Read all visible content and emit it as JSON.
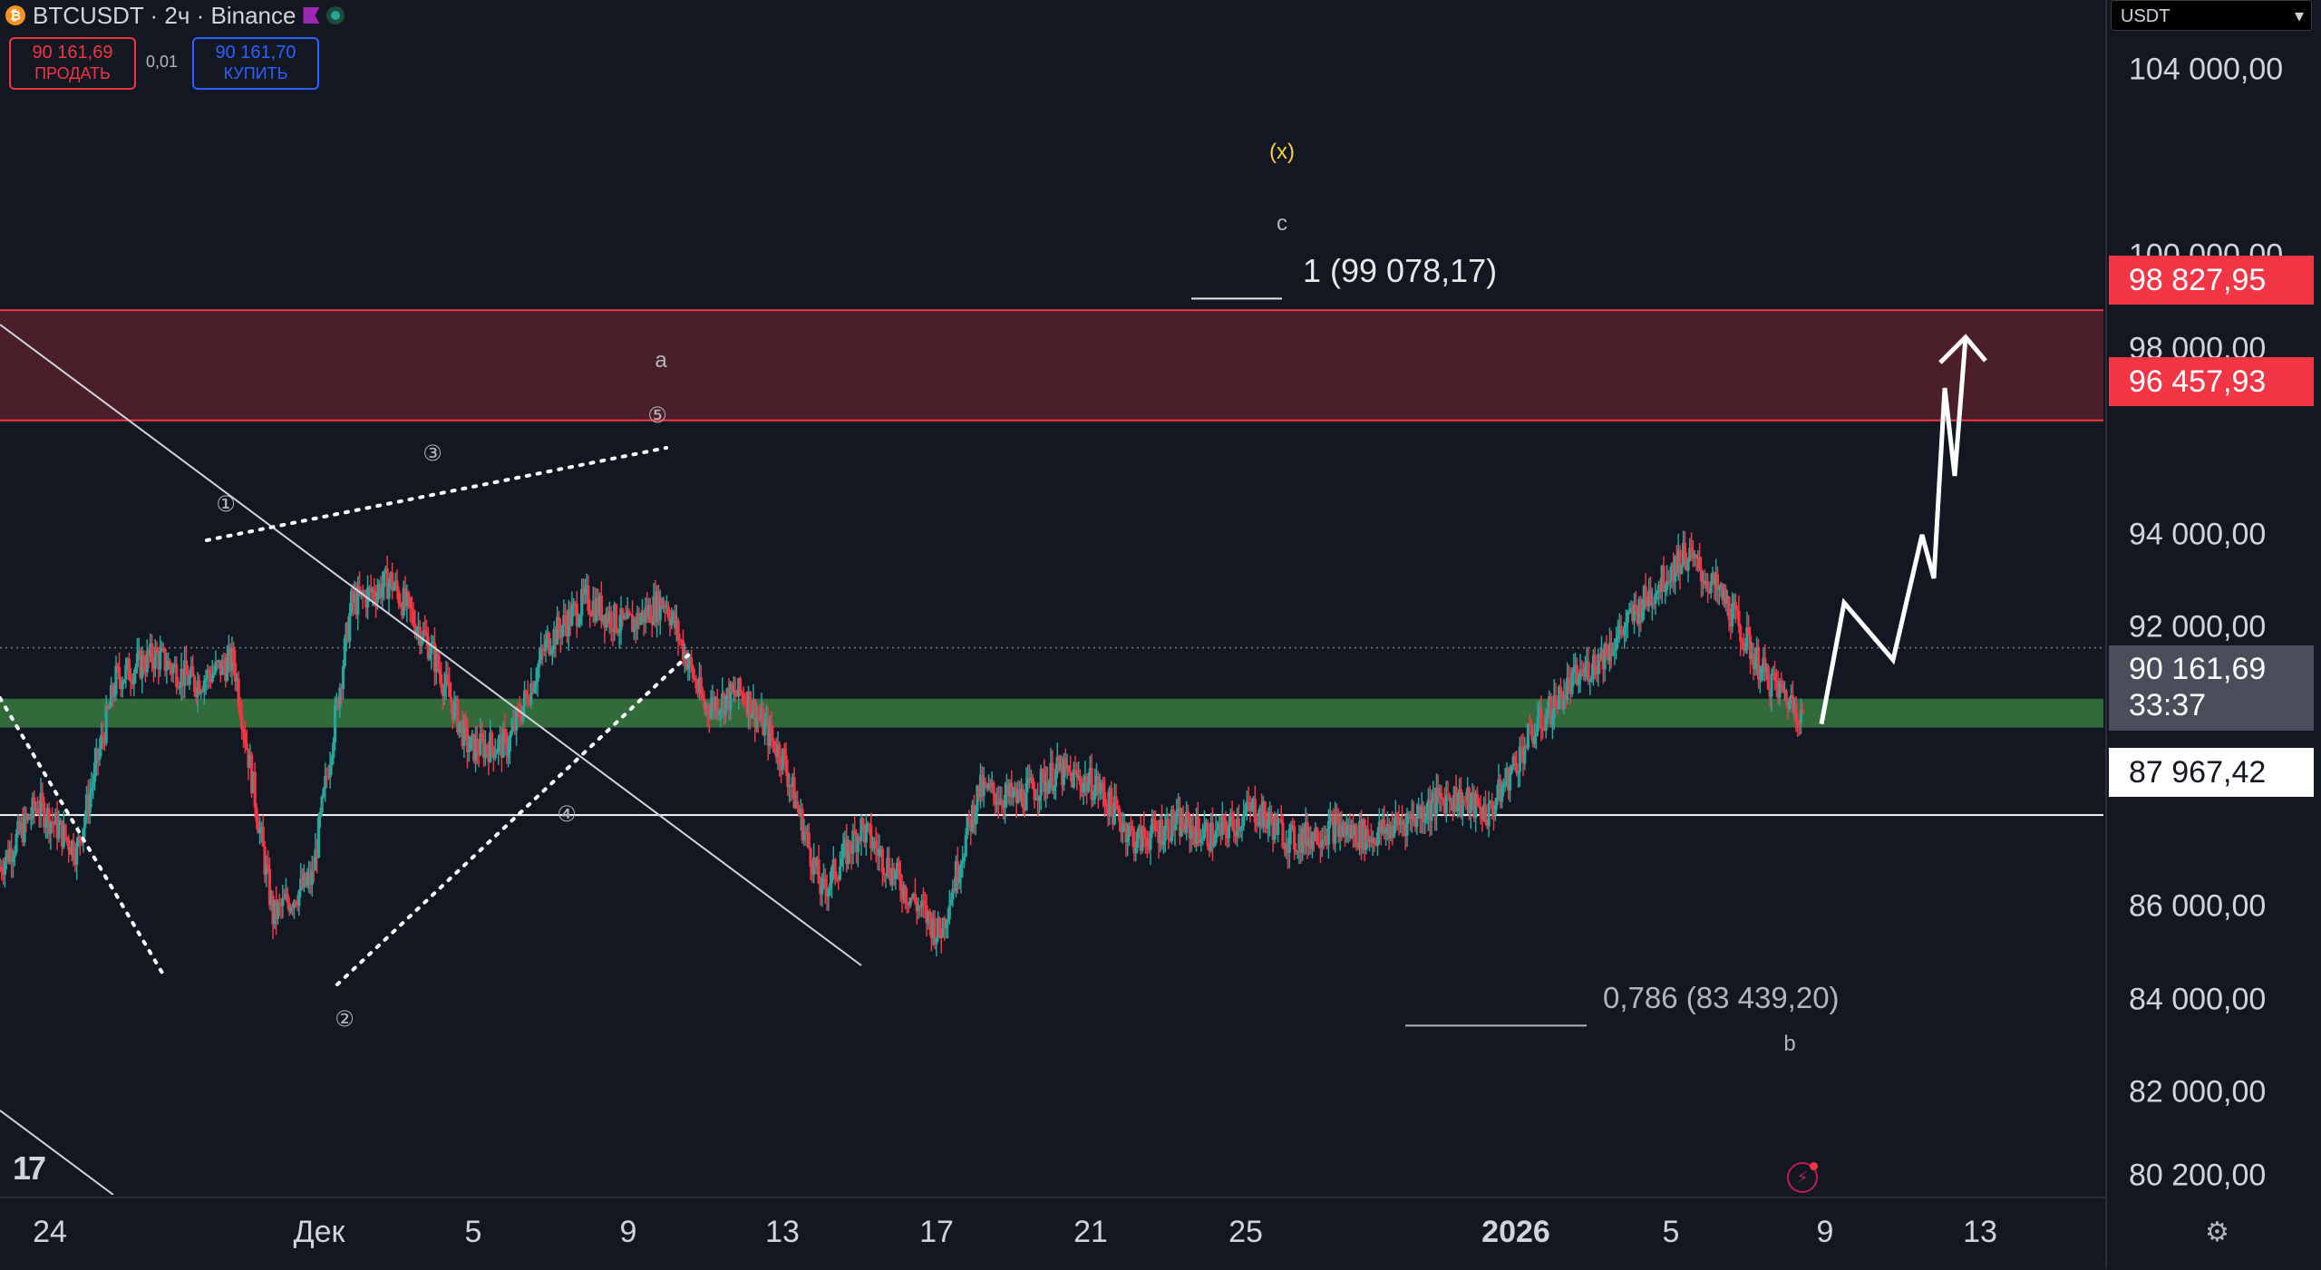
{
  "symbol": {
    "title": "BTCUSDT · 2ч · Binance",
    "coin_glyph": "₿",
    "colors": {
      "coin": "#f7931a",
      "flag": "#9c27b0",
      "status": "#26a69a"
    }
  },
  "trade": {
    "sell_price": "90 161,69",
    "sell_label": "ПРОДАТЬ",
    "spread": "0,01",
    "buy_price": "90 161,70",
    "buy_label": "КУПИТЬ"
  },
  "annotations": {
    "wave_x": "(x)",
    "wave_c": "c",
    "wave_a": "a",
    "wave_b": "b",
    "wave_1": "①",
    "wave_2": "②",
    "wave_3": "③",
    "wave_4": "④",
    "wave_5": "⑤",
    "fib_top": "1 (99 078,17)",
    "fib_bottom": "0,786 (83 439,20)"
  },
  "price_axis": {
    "currency": "USDT",
    "ticks": [
      "104 000,00",
      "100 000,00",
      "98 000,00",
      "94 000,00",
      "92 000,00",
      "86 000,00",
      "84 000,00",
      "82 000,00",
      "80 200,00"
    ],
    "tick_values": [
      104000,
      100000,
      98000,
      94000,
      92000,
      86000,
      84000,
      82000,
      80200
    ],
    "zone_top_label": "98 827,95",
    "zone_bottom_label": "96 457,93",
    "line_label": "87 967,42",
    "current_price": "90 161,69",
    "countdown": "33:37"
  },
  "time_axis": {
    "labels": [
      "24",
      "Дек",
      "5",
      "9",
      "13",
      "17",
      "21",
      "25",
      "2026",
      "5",
      "9",
      "13"
    ]
  },
  "chart_data": {
    "type": "candlestick",
    "symbol": "BTCUSDT",
    "interval": "2ч",
    "exchange": "Binance",
    "price_range": [
      79800,
      105500
    ],
    "resistance_zone": [
      96457.93,
      98827.95
    ],
    "support_zone": [
      89850,
      90470
    ],
    "horizontal_line": 87967.42,
    "current_price": 90161.69,
    "fib_levels": [
      {
        "label": "1",
        "value": 99078.17
      },
      {
        "label": "0,786",
        "value": 83439.2
      }
    ],
    "close_path": [
      {
        "t": "24 ноя",
        "p": 86800
      },
      {
        "t": "25 ноя",
        "p": 88200
      },
      {
        "t": "26 ноя",
        "p": 87200
      },
      {
        "t": "27 ноя",
        "p": 90900
      },
      {
        "t": "28 ноя",
        "p": 91400
      },
      {
        "t": "29 ноя",
        "p": 90800
      },
      {
        "t": "30 ноя",
        "p": 91300
      },
      {
        "t": "1 дек",
        "p": 85800
      },
      {
        "t": "2 дек",
        "p": 86600
      },
      {
        "t": "3 дек",
        "p": 92500
      },
      {
        "t": "4 дек",
        "p": 93000
      },
      {
        "t": "5 дек",
        "p": 91600
      },
      {
        "t": "6 дек",
        "p": 89400
      },
      {
        "t": "7 дек",
        "p": 89500
      },
      {
        "t": "8 дек",
        "p": 91700
      },
      {
        "t": "9 дек",
        "p": 92600
      },
      {
        "t": "10 дек",
        "p": 92000
      },
      {
        "t": "11 дек",
        "p": 92600
      },
      {
        "t": "12 дек",
        "p": 90300
      },
      {
        "t": "13 дек",
        "p": 90600
      },
      {
        "t": "14 дек",
        "p": 89200
      },
      {
        "t": "15 дек",
        "p": 86300
      },
      {
        "t": "16 дек",
        "p": 87700
      },
      {
        "t": "17 дек",
        "p": 86500
      },
      {
        "t": "18 дек",
        "p": 85400
      },
      {
        "t": "19 дек",
        "p": 88500
      },
      {
        "t": "20 дек",
        "p": 88300
      },
      {
        "t": "21 дек",
        "p": 88900
      },
      {
        "t": "22 дек",
        "p": 88600
      },
      {
        "t": "23 дек",
        "p": 87400
      },
      {
        "t": "24 дек",
        "p": 87800
      },
      {
        "t": "25 дек",
        "p": 87500
      },
      {
        "t": "26 дек",
        "p": 88100
      },
      {
        "t": "27 дек",
        "p": 87400
      },
      {
        "t": "28 дек",
        "p": 87700
      },
      {
        "t": "29 дек",
        "p": 87500
      },
      {
        "t": "30 дек",
        "p": 87900
      },
      {
        "t": "31 дек",
        "p": 88400
      },
      {
        "t": "1 янв",
        "p": 88000
      },
      {
        "t": "2 янв",
        "p": 89600
      },
      {
        "t": "3 янв",
        "p": 90700
      },
      {
        "t": "4 янв",
        "p": 91500
      },
      {
        "t": "5 янв",
        "p": 92600
      },
      {
        "t": "6 янв",
        "p": 93600
      },
      {
        "t": "7 янв",
        "p": 92600
      },
      {
        "t": "8 янв",
        "p": 91000
      },
      {
        "t": "9 янв",
        "p": 90161.69
      }
    ],
    "projection": [
      {
        "t": "9 янв",
        "p": 90161.69
      },
      {
        "t": "10 янв",
        "p": 91500
      },
      {
        "t": "11 янв",
        "p": 90600
      },
      {
        "t": "12 янв",
        "p": 92900
      },
      {
        "t": "12 янв",
        "p": 92000
      },
      {
        "t": "13 янв",
        "p": 96200
      },
      {
        "t": "13 янв",
        "p": 94300
      },
      {
        "t": "14 янв",
        "p": 97400
      }
    ]
  }
}
